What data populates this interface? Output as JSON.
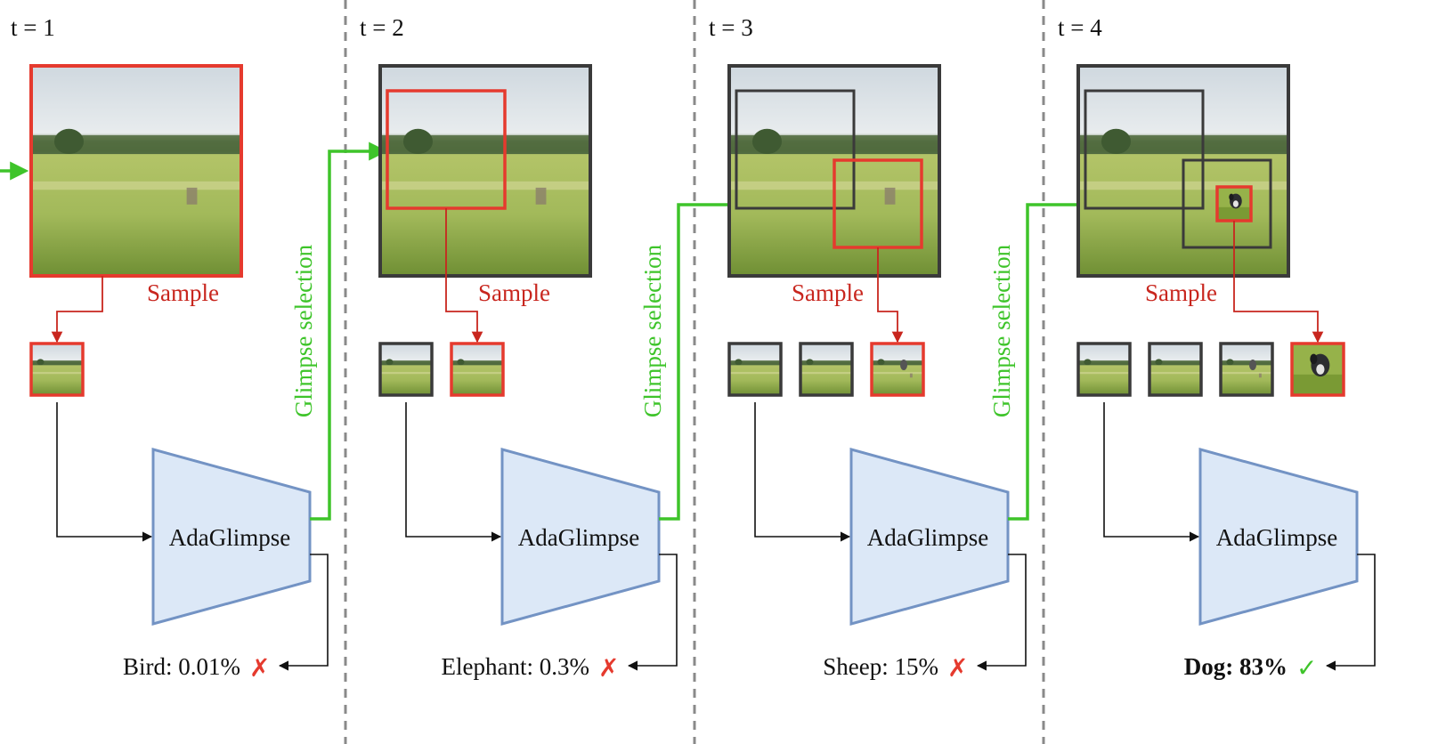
{
  "steps": [
    {
      "t_label": "t = 1",
      "sample_label": "Sample",
      "model_label": "AdaGlimpse",
      "prediction": "Bird: 0.01%",
      "mark": "✗",
      "bold": false,
      "glimpse_label": "Glimpse selection"
    },
    {
      "t_label": "t = 2",
      "sample_label": "Sample",
      "model_label": "AdaGlimpse",
      "prediction": "Elephant: 0.3%",
      "mark": "✗",
      "bold": false,
      "glimpse_label": "Glimpse selection"
    },
    {
      "t_label": "t = 3",
      "sample_label": "Sample",
      "model_label": "AdaGlimpse",
      "prediction": "Sheep: 15%",
      "mark": "✗",
      "bold": false,
      "glimpse_label": "Glimpse selection"
    },
    {
      "t_label": "t = 4",
      "sample_label": "Sample",
      "model_label": "AdaGlimpse",
      "prediction": "Dog: 83%",
      "mark": "✓",
      "bold": true
    }
  ],
  "colors": {
    "sample": "#c8261e",
    "glimpse": "#3ec42a",
    "model_fill": "#dce8f7",
    "model_stroke": "#7393c4",
    "frame": "#3a3a3a",
    "highlight": "#e53a2e",
    "divider": "#8a8a8a",
    "wrong": "#e53a2e",
    "right": "#3ec42a"
  }
}
